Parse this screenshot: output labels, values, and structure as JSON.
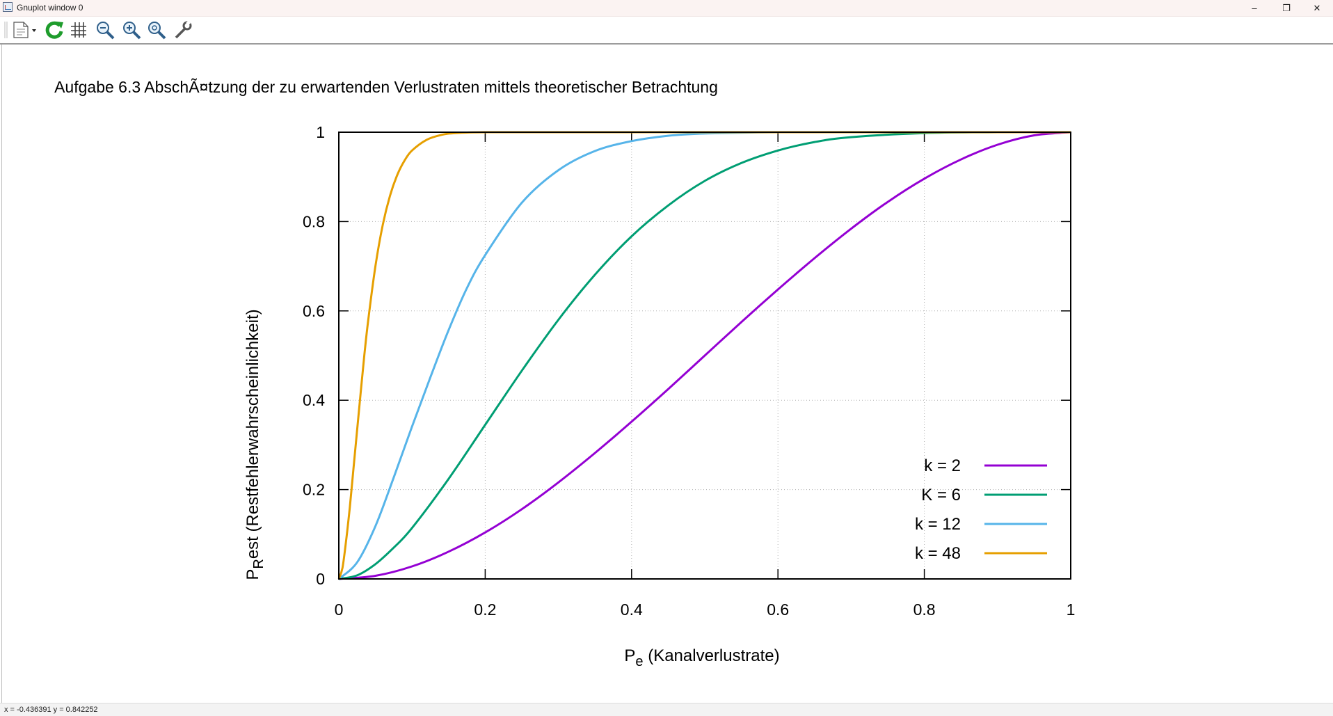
{
  "window": {
    "title": "Gnuplot window 0",
    "minimize": "–",
    "restore": "❐",
    "close": "✕"
  },
  "toolbar": {
    "icons": [
      "copy-print-menu-icon",
      "replot-icon",
      "grid-icon",
      "zoom-out-icon",
      "zoom-in-icon",
      "zoom-reset-icon",
      "options-wrench-icon"
    ]
  },
  "status": {
    "text": "x = -0.436391 y = 0.842252"
  },
  "chart_data": {
    "type": "line",
    "title": "Aufgabe 6.3 AbschÃ¤tzung der zu erwartenden Verlustraten mittels theoretischer Betrachtung",
    "xlabel": {
      "main": "P",
      "sub": "e",
      "rest": " (Kanalverlustrate)"
    },
    "ylabel": {
      "main": "P",
      "sub": "R",
      "rest": "est (Restfehlerwahrscheinlichkeit)"
    },
    "xlim": [
      0,
      1
    ],
    "ylim": [
      0,
      1
    ],
    "xticks": [
      "0",
      "0.2",
      "0.4",
      "0.6",
      "0.8",
      "1"
    ],
    "yticks": [
      "0",
      "0.2",
      "0.4",
      "0.6",
      "0.8",
      "1"
    ],
    "grid": true,
    "legend_position": "bottom-right",
    "series": [
      {
        "name": "k = 2",
        "color": "#9400d3",
        "x": [
          0,
          0.05,
          0.1,
          0.15,
          0.2,
          0.25,
          0.3,
          0.35,
          0.4,
          0.45,
          0.5,
          0.55,
          0.6,
          0.65,
          0.7,
          0.75,
          0.8,
          0.85,
          0.9,
          0.95,
          1
        ],
        "y": [
          0,
          0.007,
          0.028,
          0.061,
          0.104,
          0.156,
          0.216,
          0.282,
          0.352,
          0.425,
          0.5,
          0.575,
          0.648,
          0.718,
          0.784,
          0.844,
          0.896,
          0.939,
          0.972,
          0.993,
          1
        ]
      },
      {
        "name": "K = 6",
        "color": "#009e73",
        "x": [
          0,
          0.025,
          0.05,
          0.075,
          0.1,
          0.15,
          0.2,
          0.25,
          0.3,
          0.35,
          0.4,
          0.45,
          0.5,
          0.55,
          0.6,
          0.65,
          0.7,
          0.8,
          0.9,
          1
        ],
        "y": [
          0,
          0.008,
          0.033,
          0.07,
          0.114,
          0.224,
          0.345,
          0.466,
          0.58,
          0.681,
          0.767,
          0.836,
          0.891,
          0.931,
          0.959,
          0.978,
          0.989,
          0.998,
          1,
          1
        ]
      },
      {
        "name": "k = 12",
        "color": "#56b4e9",
        "x": [
          0,
          0.025,
          0.05,
          0.075,
          0.1,
          0.125,
          0.15,
          0.175,
          0.2,
          0.25,
          0.3,
          0.35,
          0.4,
          0.45,
          0.5,
          0.6,
          0.7,
          0.8,
          1
        ],
        "y": [
          0,
          0.037,
          0.118,
          0.227,
          0.341,
          0.451,
          0.557,
          0.651,
          0.725,
          0.842,
          0.915,
          0.958,
          0.98,
          0.992,
          0.997,
          1,
          1,
          1,
          1
        ]
      },
      {
        "name": "k = 48",
        "color": "#e69f00",
        "x": [
          0,
          0.005,
          0.01,
          0.015,
          0.02,
          0.025,
          0.03,
          0.035,
          0.04,
          0.05,
          0.06,
          0.07,
          0.08,
          0.09,
          0.1,
          0.12,
          0.14,
          0.16,
          0.2,
          0.3,
          0.5,
          0.8,
          1
        ],
        "y": [
          0,
          0.025,
          0.086,
          0.16,
          0.246,
          0.333,
          0.42,
          0.503,
          0.577,
          0.7,
          0.792,
          0.858,
          0.905,
          0.937,
          0.959,
          0.983,
          0.994,
          0.998,
          1,
          1,
          1,
          1,
          1
        ]
      }
    ]
  }
}
